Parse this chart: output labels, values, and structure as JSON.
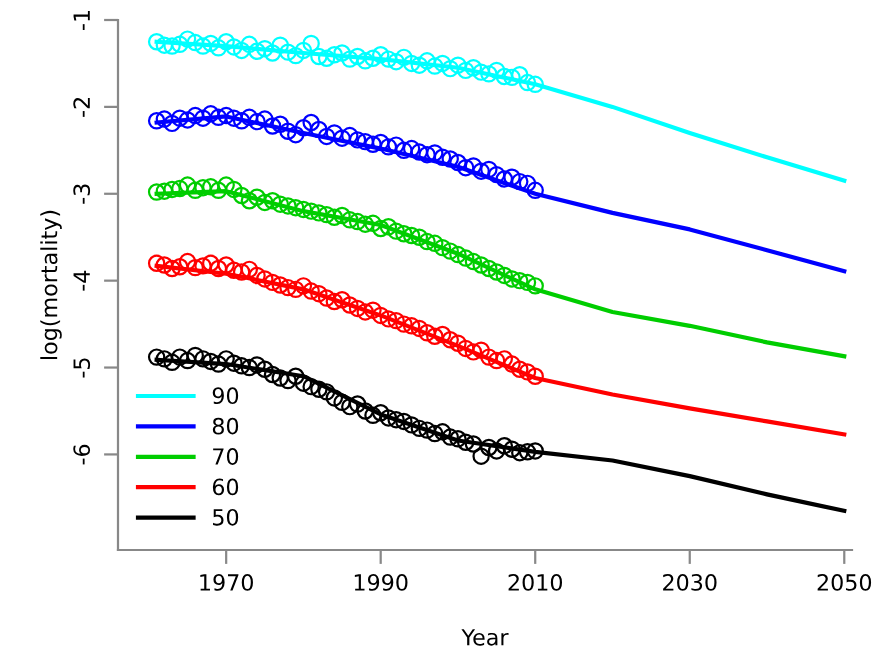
{
  "chart_data": {
    "type": "line",
    "xlabel": "Year",
    "ylabel": "log(mortality)",
    "xlim": [
      1956,
      2051
    ],
    "ylim": [
      -7.1,
      -1
    ],
    "xticks": [
      1970,
      1990,
      2010,
      2030,
      2050
    ],
    "yticks": [
      -1,
      -2,
      -3,
      -4,
      -5,
      -6
    ],
    "grid": false,
    "legend": "bottom left",
    "x": [
      1961,
      1970,
      1980,
      1990,
      2000,
      2010,
      2020,
      2030,
      2040,
      2050
    ],
    "series": [
      {
        "name": "90",
        "color": "#00ffff",
        "values": [
          -1.25,
          -1.3,
          -1.38,
          -1.45,
          -1.55,
          -1.74,
          -2.0,
          -2.3,
          -2.58,
          -2.85
        ]
      },
      {
        "name": "80",
        "color": "#0000ff",
        "values": [
          -2.18,
          -2.11,
          -2.3,
          -2.48,
          -2.69,
          -3.0,
          -3.22,
          -3.41,
          -3.65,
          -3.89
        ]
      },
      {
        "name": "70",
        "color": "#00cd00",
        "values": [
          -3.0,
          -2.97,
          -3.2,
          -3.36,
          -3.69,
          -4.1,
          -4.36,
          -4.52,
          -4.71,
          -4.87
        ]
      },
      {
        "name": "60",
        "color": "#ff0000",
        "values": [
          -3.83,
          -3.92,
          -4.1,
          -4.4,
          -4.75,
          -5.12,
          -5.31,
          -5.47,
          -5.62,
          -5.77
        ]
      },
      {
        "name": "50",
        "color": "#000000",
        "values": [
          -4.91,
          -4.96,
          -5.1,
          -5.54,
          -5.84,
          -5.97,
          -6.07,
          -6.25,
          -6.46,
          -6.65
        ]
      },
      {
        "type": "scatter",
        "marker": "circle",
        "color": "#00ffff",
        "x": [
          1961,
          1962,
          1963,
          1964,
          1965,
          1966,
          1967,
          1968,
          1969,
          1970,
          1971,
          1972,
          1973,
          1974,
          1975,
          1976,
          1977,
          1978,
          1979,
          1980,
          1981,
          1982,
          1983,
          1984,
          1985,
          1986,
          1987,
          1988,
          1989,
          1990,
          1991,
          1992,
          1993,
          1994,
          1995,
          1996,
          1997,
          1998,
          1999,
          2000,
          2001,
          2002,
          2003,
          2004,
          2005,
          2006,
          2007,
          2008,
          2009,
          2010
        ],
        "values": [
          -1.25,
          -1.29,
          -1.3,
          -1.28,
          -1.22,
          -1.26,
          -1.3,
          -1.27,
          -1.32,
          -1.25,
          -1.31,
          -1.35,
          -1.28,
          -1.36,
          -1.33,
          -1.38,
          -1.29,
          -1.37,
          -1.41,
          -1.35,
          -1.27,
          -1.42,
          -1.44,
          -1.4,
          -1.38,
          -1.45,
          -1.42,
          -1.47,
          -1.44,
          -1.4,
          -1.45,
          -1.48,
          -1.43,
          -1.5,
          -1.52,
          -1.47,
          -1.53,
          -1.5,
          -1.56,
          -1.52,
          -1.58,
          -1.55,
          -1.6,
          -1.62,
          -1.58,
          -1.65,
          -1.66,
          -1.63,
          -1.72,
          -1.74
        ]
      },
      {
        "type": "scatter",
        "marker": "circle",
        "color": "#0000ff",
        "x": [
          1961,
          1962,
          1963,
          1964,
          1965,
          1966,
          1967,
          1968,
          1969,
          1970,
          1971,
          1972,
          1973,
          1974,
          1975,
          1976,
          1977,
          1978,
          1979,
          1980,
          1981,
          1982,
          1983,
          1984,
          1985,
          1986,
          1987,
          1988,
          1989,
          1990,
          1991,
          1992,
          1993,
          1994,
          1995,
          1996,
          1997,
          1998,
          1999,
          2000,
          2001,
          2002,
          2003,
          2004,
          2005,
          2006,
          2007,
          2008,
          2009,
          2010
        ],
        "values": [
          -2.16,
          -2.14,
          -2.19,
          -2.13,
          -2.15,
          -2.1,
          -2.13,
          -2.08,
          -2.12,
          -2.1,
          -2.13,
          -2.16,
          -2.12,
          -2.17,
          -2.14,
          -2.22,
          -2.2,
          -2.28,
          -2.32,
          -2.24,
          -2.18,
          -2.26,
          -2.34,
          -2.3,
          -2.36,
          -2.33,
          -2.38,
          -2.4,
          -2.43,
          -2.41,
          -2.46,
          -2.44,
          -2.5,
          -2.48,
          -2.52,
          -2.55,
          -2.53,
          -2.58,
          -2.6,
          -2.64,
          -2.7,
          -2.68,
          -2.74,
          -2.72,
          -2.78,
          -2.83,
          -2.81,
          -2.86,
          -2.88,
          -2.96
        ]
      },
      {
        "type": "scatter",
        "marker": "circle",
        "color": "#00cd00",
        "x": [
          1961,
          1962,
          1963,
          1964,
          1965,
          1966,
          1967,
          1968,
          1969,
          1970,
          1971,
          1972,
          1973,
          1974,
          1975,
          1976,
          1977,
          1978,
          1979,
          1980,
          1981,
          1982,
          1983,
          1984,
          1985,
          1986,
          1987,
          1988,
          1989,
          1990,
          1991,
          1992,
          1993,
          1994,
          1995,
          1996,
          1997,
          1998,
          1999,
          2000,
          2001,
          2002,
          2003,
          2004,
          2005,
          2006,
          2007,
          2008,
          2009,
          2010
        ],
        "values": [
          -2.98,
          -2.97,
          -2.95,
          -2.94,
          -2.9,
          -2.96,
          -2.93,
          -2.92,
          -2.96,
          -2.9,
          -2.95,
          -3.02,
          -3.08,
          -3.04,
          -3.1,
          -3.08,
          -3.12,
          -3.14,
          -3.16,
          -3.18,
          -3.2,
          -3.22,
          -3.24,
          -3.27,
          -3.25,
          -3.3,
          -3.32,
          -3.35,
          -3.34,
          -3.4,
          -3.38,
          -3.43,
          -3.46,
          -3.48,
          -3.5,
          -3.55,
          -3.57,
          -3.62,
          -3.66,
          -3.7,
          -3.74,
          -3.78,
          -3.82,
          -3.86,
          -3.9,
          -3.94,
          -3.98,
          -4.0,
          -4.02,
          -4.06
        ]
      },
      {
        "type": "scatter",
        "marker": "circle",
        "color": "#ff0000",
        "x": [
          1961,
          1962,
          1963,
          1964,
          1965,
          1966,
          1967,
          1968,
          1969,
          1970,
          1971,
          1972,
          1973,
          1974,
          1975,
          1976,
          1977,
          1978,
          1979,
          1980,
          1981,
          1982,
          1983,
          1984,
          1985,
          1986,
          1987,
          1988,
          1989,
          1990,
          1991,
          1992,
          1993,
          1994,
          1995,
          1996,
          1997,
          1998,
          1999,
          2000,
          2001,
          2002,
          2003,
          2004,
          2005,
          2006,
          2007,
          2008,
          2009,
          2010
        ],
        "values": [
          -3.8,
          -3.82,
          -3.86,
          -3.84,
          -3.78,
          -3.85,
          -3.83,
          -3.8,
          -3.86,
          -3.82,
          -3.88,
          -3.9,
          -3.87,
          -3.94,
          -3.98,
          -4.02,
          -4.05,
          -4.08,
          -4.1,
          -4.06,
          -4.12,
          -4.15,
          -4.2,
          -4.24,
          -4.22,
          -4.28,
          -4.32,
          -4.36,
          -4.34,
          -4.4,
          -4.44,
          -4.46,
          -4.5,
          -4.52,
          -4.55,
          -4.6,
          -4.64,
          -4.62,
          -4.68,
          -4.72,
          -4.78,
          -4.82,
          -4.8,
          -4.88,
          -4.92,
          -4.9,
          -4.96,
          -5.02,
          -5.05,
          -5.1
        ]
      },
      {
        "type": "scatter",
        "marker": "circle",
        "color": "#000000",
        "x": [
          1961,
          1962,
          1963,
          1964,
          1965,
          1966,
          1967,
          1968,
          1969,
          1970,
          1971,
          1972,
          1973,
          1974,
          1975,
          1976,
          1977,
          1978,
          1979,
          1980,
          1981,
          1982,
          1983,
          1984,
          1985,
          1986,
          1987,
          1988,
          1989,
          1990,
          1991,
          1992,
          1993,
          1994,
          1995,
          1996,
          1997,
          1998,
          1999,
          2000,
          2001,
          2002,
          2003,
          2004,
          2005,
          2006,
          2007,
          2008,
          2009,
          2010
        ],
        "values": [
          -4.88,
          -4.9,
          -4.94,
          -4.88,
          -4.92,
          -4.86,
          -4.9,
          -4.93,
          -4.96,
          -4.9,
          -4.95,
          -4.98,
          -5.0,
          -4.97,
          -5.02,
          -5.08,
          -5.12,
          -5.15,
          -5.1,
          -5.18,
          -5.22,
          -5.25,
          -5.28,
          -5.35,
          -5.4,
          -5.45,
          -5.42,
          -5.5,
          -5.55,
          -5.52,
          -5.58,
          -5.6,
          -5.62,
          -5.66,
          -5.7,
          -5.72,
          -5.76,
          -5.74,
          -5.8,
          -5.82,
          -5.86,
          -5.88,
          -6.02,
          -5.92,
          -5.96,
          -5.9,
          -5.94,
          -5.98,
          -5.97,
          -5.96
        ]
      }
    ]
  }
}
